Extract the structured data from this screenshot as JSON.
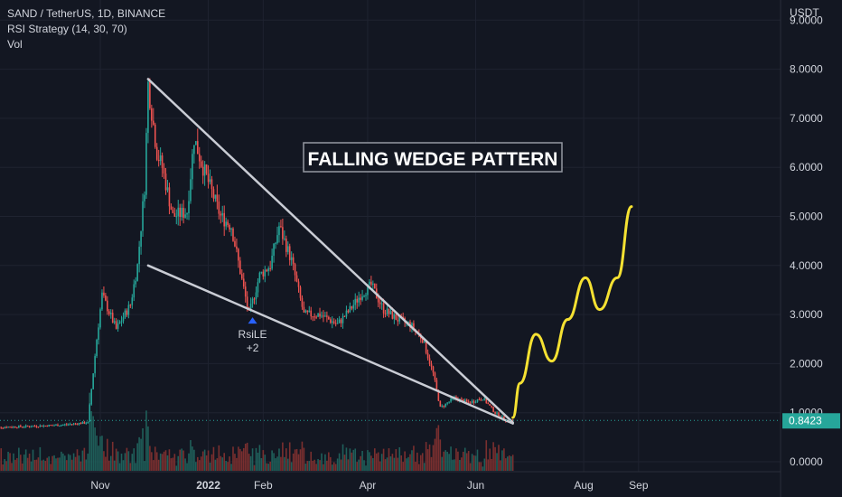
{
  "header": {
    "symbol_line": "SAND / TetherUS, 1D, BINANCE",
    "indicator_line": "RSI Strategy (14, 30, 70)",
    "volume_line": "Vol"
  },
  "price_axis": {
    "unit": "USDT",
    "ticks": [
      "0.0000",
      "1.0000",
      "2.0000",
      "3.0000",
      "4.0000",
      "5.0000",
      "6.0000",
      "7.0000",
      "8.0000",
      "9.0000"
    ],
    "last_price": "0.8423"
  },
  "time_axis": {
    "labels": [
      "Nov",
      "2022",
      "Feb",
      "Apr",
      "Jun",
      "Aug",
      "Sep"
    ]
  },
  "annotation": {
    "pattern_label": "FALLING WEDGE PATTERN",
    "signal_label": "RsiLE",
    "signal_qty": "+2"
  },
  "colors": {
    "background": "#131722",
    "up": "#26a69a",
    "down": "#ef5350",
    "wedge": "#c9ccd4",
    "projection": "#f5e132",
    "price_tag": "#26a69a"
  },
  "chart_data": {
    "type": "candlestick",
    "title": "SAND / TetherUS, 1D, BINANCE",
    "ylabel": "USDT",
    "ylim": [
      0,
      9
    ],
    "price_path": [
      [
        "2021-09-01",
        0.7
      ],
      [
        "2021-09-20",
        0.72
      ],
      [
        "2021-10-10",
        0.75
      ],
      [
        "2021-10-25",
        0.8
      ],
      [
        "2021-10-30",
        2.5
      ],
      [
        "2021-11-02",
        3.4
      ],
      [
        "2021-11-10",
        2.7
      ],
      [
        "2021-11-18",
        3.2
      ],
      [
        "2021-11-22",
        4.0
      ],
      [
        "2021-11-26",
        5.6
      ],
      [
        "2021-11-28",
        7.7
      ],
      [
        "2021-12-03",
        6.3
      ],
      [
        "2021-12-06",
        6.0
      ],
      [
        "2021-12-12",
        5.0
      ],
      [
        "2021-12-20",
        5.1
      ],
      [
        "2021-12-24",
        6.6
      ],
      [
        "2021-12-28",
        6.1
      ],
      [
        "2022-01-08",
        5.0
      ],
      [
        "2022-01-14",
        4.8
      ],
      [
        "2022-01-20",
        3.7
      ],
      [
        "2022-01-24",
        3.0
      ],
      [
        "2022-01-30",
        3.8
      ],
      [
        "2022-02-05",
        4.0
      ],
      [
        "2022-02-10",
        4.8
      ],
      [
        "2022-02-17",
        4.1
      ],
      [
        "2022-02-24",
        3.0
      ],
      [
        "2022-03-05",
        3.0
      ],
      [
        "2022-03-15",
        2.8
      ],
      [
        "2022-03-22",
        3.1
      ],
      [
        "2022-03-28",
        3.4
      ],
      [
        "2022-04-03",
        3.6
      ],
      [
        "2022-04-10",
        3.1
      ],
      [
        "2022-04-18",
        2.9
      ],
      [
        "2022-04-25",
        2.8
      ],
      [
        "2022-05-02",
        2.5
      ],
      [
        "2022-05-08",
        1.8
      ],
      [
        "2022-05-12",
        1.1
      ],
      [
        "2022-05-20",
        1.3
      ],
      [
        "2022-05-28",
        1.2
      ],
      [
        "2022-06-05",
        1.3
      ],
      [
        "2022-06-12",
        1.0
      ],
      [
        "2022-06-18",
        0.85
      ],
      [
        "2022-06-22",
        0.8423
      ]
    ],
    "wedge_upper": [
      [
        "2021-11-28",
        7.8
      ],
      [
        "2022-06-22",
        0.8
      ]
    ],
    "wedge_lower": [
      [
        "2021-11-28",
        4.0
      ],
      [
        "2022-06-22",
        0.78
      ]
    ],
    "projection": [
      [
        "2022-06-22",
        0.9
      ],
      [
        "2022-06-26",
        1.6
      ],
      [
        "2022-07-05",
        2.6
      ],
      [
        "2022-07-14",
        2.05
      ],
      [
        "2022-07-23",
        2.9
      ],
      [
        "2022-08-02",
        3.75
      ],
      [
        "2022-08-10",
        3.1
      ],
      [
        "2022-08-20",
        3.75
      ],
      [
        "2022-08-28",
        5.2
      ]
    ],
    "signal": {
      "label": "RsiLE",
      "qty": "+2",
      "date": "2022-01-26",
      "price": 3.0
    },
    "last_price": 0.8423
  }
}
